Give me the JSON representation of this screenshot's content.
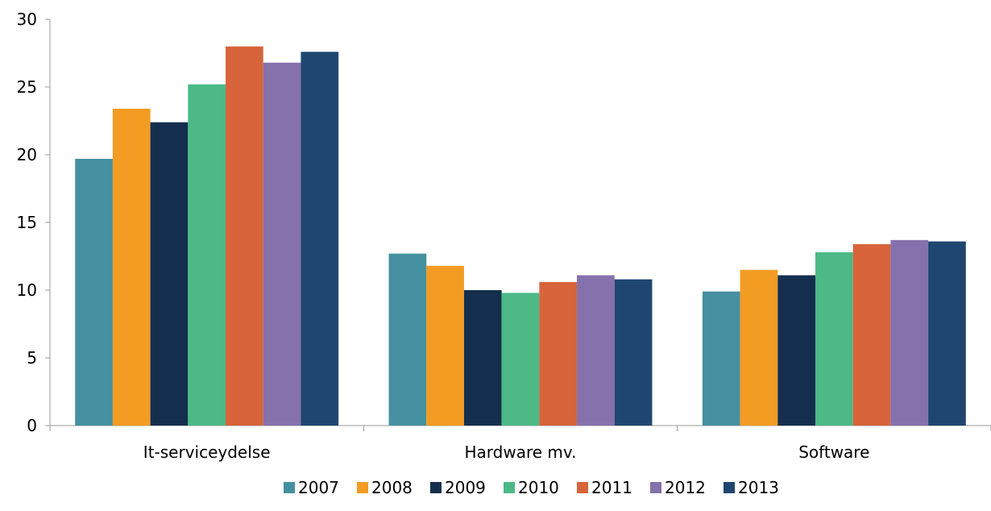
{
  "chart_data": {
    "type": "bar",
    "title": "",
    "xlabel": "",
    "ylabel": "",
    "ylim": [
      0,
      30
    ],
    "yticks": [
      0,
      5,
      10,
      15,
      20,
      25,
      30
    ],
    "grid": false,
    "legend_position": "bottom",
    "categories": [
      "It-serviceydelse",
      "Hardware mv.",
      "Software"
    ],
    "series": [
      {
        "name": "2007",
        "color": "#4590a1",
        "values": [
          19.7,
          12.7,
          9.9
        ]
      },
      {
        "name": "2008",
        "color": "#f39c24",
        "values": [
          23.4,
          11.8,
          11.5
        ]
      },
      {
        "name": "2009",
        "color": "#142f4e",
        "values": [
          22.4,
          10.0,
          11.1
        ]
      },
      {
        "name": "2010",
        "color": "#4cb987",
        "values": [
          25.2,
          9.8,
          12.8
        ]
      },
      {
        "name": "2011",
        "color": "#d7643b",
        "values": [
          28.0,
          10.6,
          13.4
        ]
      },
      {
        "name": "2012",
        "color": "#8571ac",
        "values": [
          26.8,
          11.1,
          13.7
        ]
      },
      {
        "name": "2013",
        "color": "#1e4670",
        "values": [
          27.6,
          10.8,
          13.6
        ]
      }
    ]
  }
}
